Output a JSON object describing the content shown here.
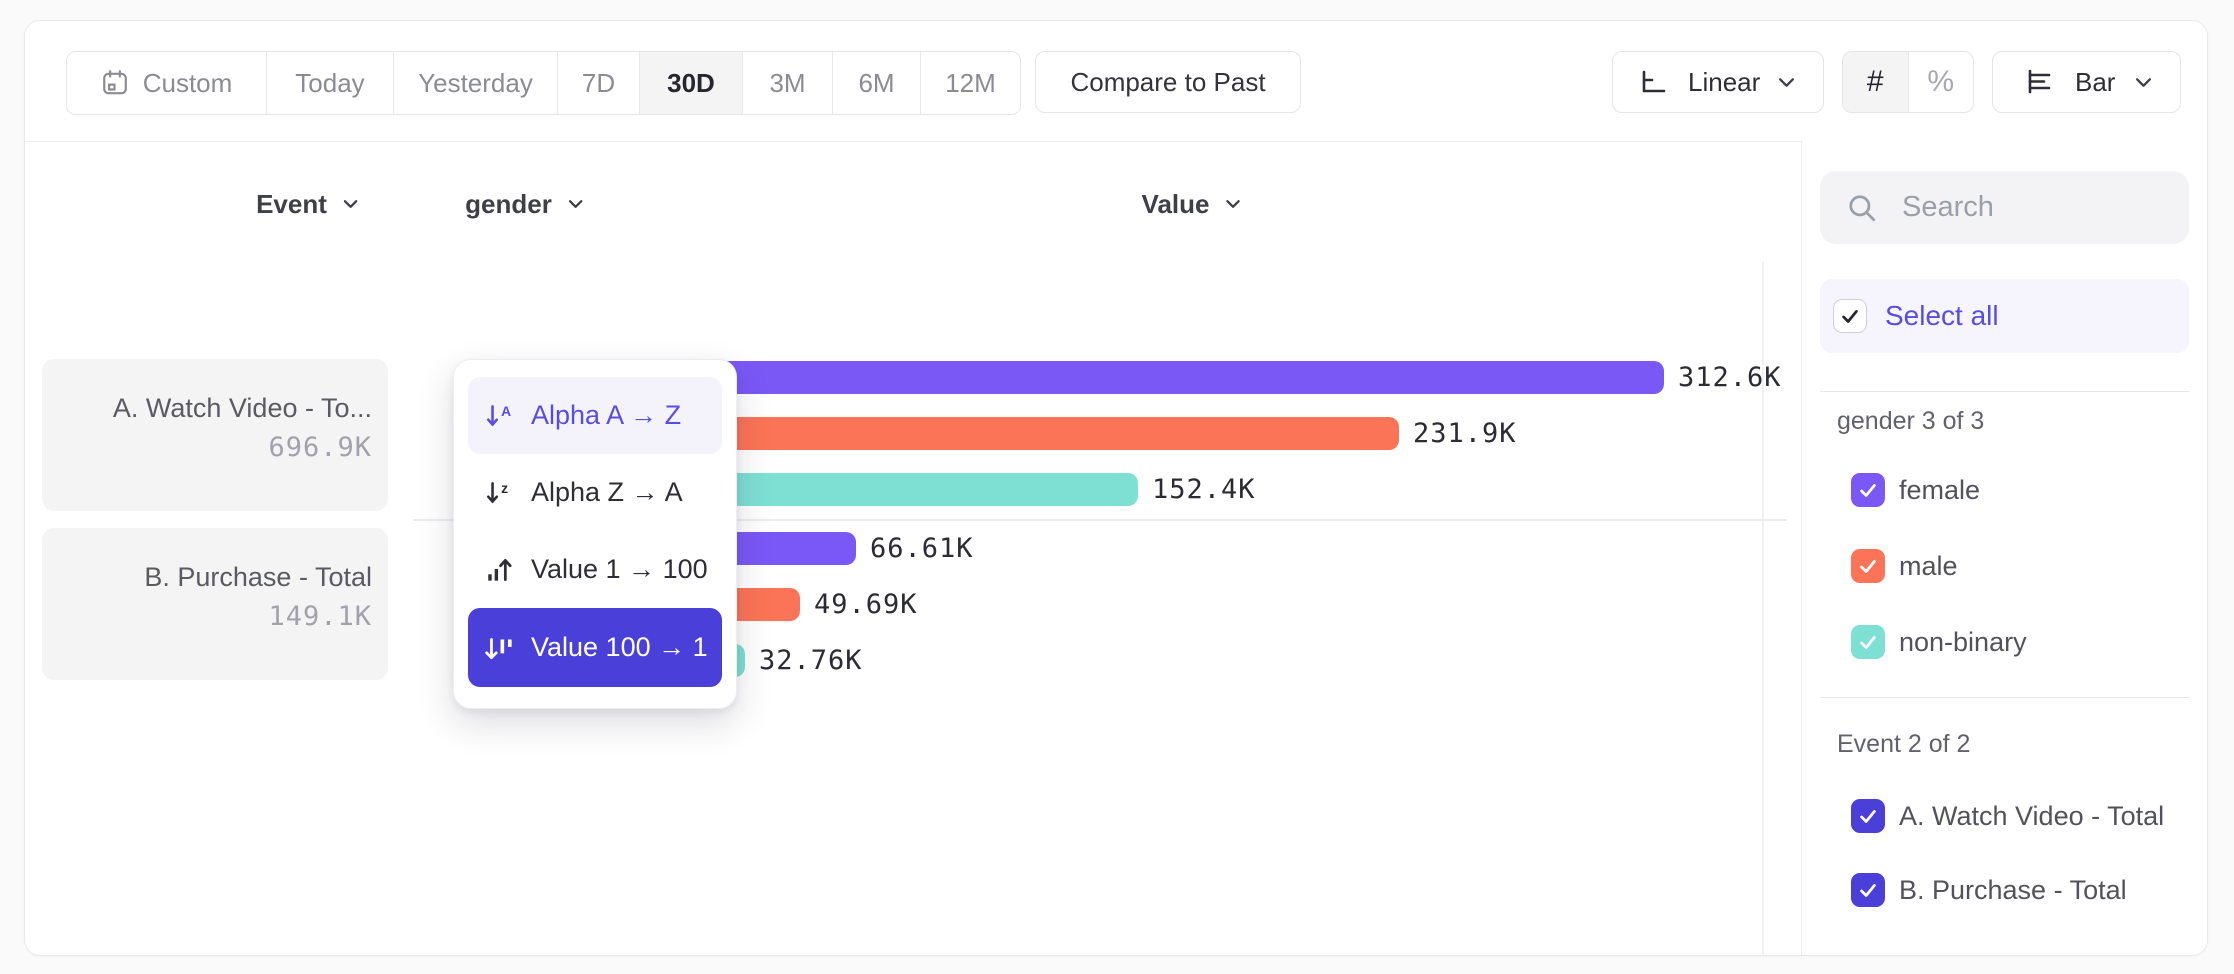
{
  "toolbar": {
    "date_ranges": [
      {
        "label": "Custom",
        "icon": "calendar-icon",
        "selected": false
      },
      {
        "label": "Today",
        "selected": false
      },
      {
        "label": "Yesterday",
        "selected": false
      },
      {
        "label": "7D",
        "selected": false
      },
      {
        "label": "30D",
        "selected": true
      },
      {
        "label": "3M",
        "selected": false
      },
      {
        "label": "6M",
        "selected": false
      },
      {
        "label": "12M",
        "selected": false
      }
    ],
    "compare_button": "Compare to Past",
    "scale_selector": {
      "label": "Linear",
      "icon": "axis-linear-icon"
    },
    "number_format": {
      "options": [
        "#",
        "%"
      ],
      "selected": "#"
    },
    "chart_type_selector": {
      "label": "Bar",
      "icon": "bar-chart-icon"
    }
  },
  "columns": {
    "event": "Event",
    "breakdown": "gender",
    "value": "Value"
  },
  "sort_menu": {
    "items": [
      {
        "label": "Alpha A → Z",
        "icon": "sort-alpha-asc-icon",
        "state": "highlighted"
      },
      {
        "label": "Alpha Z → A",
        "icon": "sort-alpha-desc-icon",
        "state": "default"
      },
      {
        "label": "Value 1 → 100",
        "icon": "sort-value-asc-icon",
        "state": "default"
      },
      {
        "label": "Value 100 → 1",
        "icon": "sort-value-desc-icon",
        "state": "selected"
      }
    ]
  },
  "chart_data": {
    "type": "bar",
    "orientation": "horizontal",
    "category_axis": "gender",
    "value_axis": "Value",
    "groups": [
      {
        "event": "A. Watch Video - Total",
        "event_label": "A. Watch Video - To...",
        "total_label": "696.9K",
        "bars": [
          {
            "category": "female",
            "value": 312600,
            "label": "312.6K",
            "color": "#7a58f6"
          },
          {
            "category": "male",
            "value": 231900,
            "label": "231.9K",
            "color": "#fb7457"
          },
          {
            "category": "non-binary",
            "value": 152400,
            "label": "152.4K",
            "color": "#7edfd3"
          }
        ]
      },
      {
        "event": "B. Purchase - Total",
        "event_label": "B. Purchase - Total",
        "total_label": "149.1K",
        "bars": [
          {
            "category": "female",
            "value": 66610,
            "label": "66.61K",
            "color": "#7a58f6"
          },
          {
            "category": "male",
            "value": 49690,
            "label": "49.69K",
            "color": "#fb7457"
          },
          {
            "category": "non-binary",
            "value": 32760,
            "label": "32.76K",
            "color": "#7edfd3"
          }
        ]
      }
    ]
  },
  "sidebar": {
    "search": {
      "placeholder": "Search",
      "icon": "search-icon"
    },
    "select_all": {
      "label": "Select all",
      "checked": true
    },
    "groups": [
      {
        "title": "gender 3 of 3",
        "items": [
          {
            "label": "female",
            "checked": true,
            "color": "#7a58f6"
          },
          {
            "label": "male",
            "checked": true,
            "color": "#fb7457"
          },
          {
            "label": "non-binary",
            "checked": true,
            "color": "#7edfd3"
          }
        ]
      },
      {
        "title": "Event 2 of 2",
        "items": [
          {
            "label": "A. Watch Video - Total",
            "checked": true,
            "color": "#4a3fd8"
          },
          {
            "label": "B. Purchase - Total",
            "checked": true,
            "color": "#4a3fd8"
          }
        ]
      }
    ]
  },
  "colors": {
    "accent_text": "#584ce2",
    "selected_fill": "#4a3fd8",
    "bar_purple": "#7a58f6",
    "bar_orange": "#fb7457",
    "bar_teal": "#7edfd3"
  }
}
